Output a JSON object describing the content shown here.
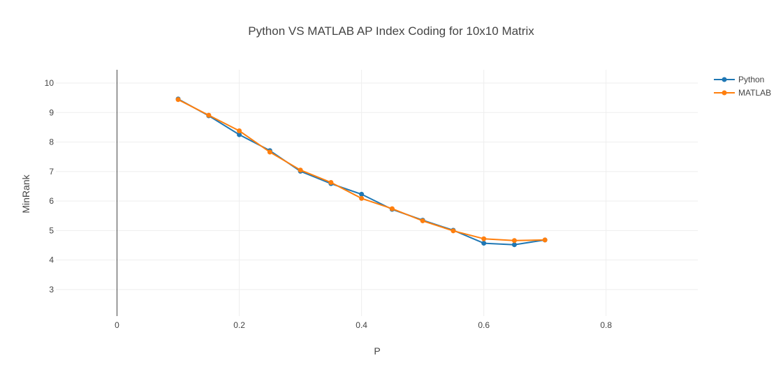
{
  "chart_data": {
    "type": "line",
    "title": "Python VS MATLAB AP Index Coding for 10x10 Matrix",
    "xlabel": "P",
    "ylabel": "MinRank",
    "xlim": [
      -0.1,
      0.95
    ],
    "ylim": [
      2.1,
      10.45
    ],
    "xticks": [
      0,
      0.2,
      0.4,
      0.6,
      0.8
    ],
    "xtick_labels": [
      "0",
      "0.2",
      "0.4",
      "0.6",
      "0.8"
    ],
    "yticks": [
      3,
      4,
      5,
      6,
      7,
      8,
      9,
      10
    ],
    "ytick_labels": [
      "3",
      "4",
      "5",
      "6",
      "7",
      "8",
      "9",
      "10"
    ],
    "grid": true,
    "legend_position": "top-right",
    "x": [
      0.1,
      0.15,
      0.2,
      0.25,
      0.3,
      0.35,
      0.4,
      0.45,
      0.5,
      0.55,
      0.6,
      0.65,
      0.7
    ],
    "series": [
      {
        "name": "Python",
        "color": "#1f77b4",
        "values": [
          9.46,
          8.89,
          8.25,
          7.71,
          7.01,
          6.59,
          6.23,
          5.72,
          5.35,
          5.01,
          4.57,
          4.52,
          4.68
        ]
      },
      {
        "name": "MATLAB",
        "color": "#ff7f0e",
        "values": [
          9.44,
          8.91,
          8.38,
          7.66,
          7.05,
          6.63,
          6.09,
          5.74,
          5.33,
          4.99,
          4.72,
          4.66,
          4.68
        ]
      }
    ]
  }
}
